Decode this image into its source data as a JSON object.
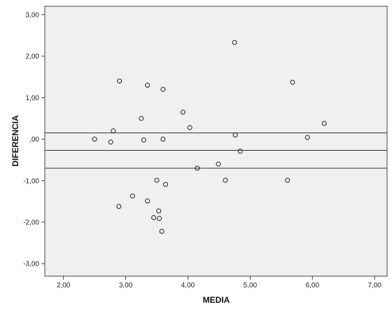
{
  "chart_data": {
    "type": "scatter",
    "title": "",
    "xlabel": "MEDIA",
    "ylabel": "DIFERENCIA",
    "xlim": [
      1.7,
      7.2
    ],
    "ylim": [
      -3.3,
      3.2
    ],
    "x_ticks": [
      2,
      3,
      4,
      5,
      6,
      7
    ],
    "x_tick_labels": [
      "2,00",
      "3,00",
      "4,00",
      "5,00",
      "6,00",
      "7,00"
    ],
    "y_ticks": [
      -3,
      -2,
      -1,
      0,
      1,
      2,
      3
    ],
    "y_tick_labels": [
      "-3,00",
      "-2,00",
      "-1,00",
      ",00",
      "1,00",
      "2,00",
      "3,00"
    ],
    "grid": false,
    "background_color": "#f0f0f0",
    "reference_lines": [
      0.15,
      -0.27,
      -0.7
    ],
    "points": [
      {
        "x": 2.5,
        "y": 0.0
      },
      {
        "x": 2.76,
        "y": -0.07
      },
      {
        "x": 2.8,
        "y": 0.2
      },
      {
        "x": 2.9,
        "y": 1.4
      },
      {
        "x": 2.89,
        "y": -1.62
      },
      {
        "x": 3.11,
        "y": -1.37
      },
      {
        "x": 3.25,
        "y": 0.5
      },
      {
        "x": 3.29,
        "y": -0.02
      },
      {
        "x": 3.35,
        "y": 1.3
      },
      {
        "x": 3.35,
        "y": -1.49
      },
      {
        "x": 3.45,
        "y": -1.89
      },
      {
        "x": 3.5,
        "y": -0.99
      },
      {
        "x": 3.53,
        "y": -1.73
      },
      {
        "x": 3.54,
        "y": -1.91
      },
      {
        "x": 3.58,
        "y": -2.22
      },
      {
        "x": 3.6,
        "y": 1.2
      },
      {
        "x": 3.6,
        "y": 0.0
      },
      {
        "x": 3.64,
        "y": -1.09
      },
      {
        "x": 3.92,
        "y": 0.65
      },
      {
        "x": 4.03,
        "y": 0.28
      },
      {
        "x": 4.15,
        "y": -0.7
      },
      {
        "x": 4.49,
        "y": -0.6
      },
      {
        "x": 4.6,
        "y": -0.99
      },
      {
        "x": 4.75,
        "y": 2.33
      },
      {
        "x": 4.76,
        "y": 0.1
      },
      {
        "x": 4.84,
        "y": -0.29
      },
      {
        "x": 5.6,
        "y": -0.99
      },
      {
        "x": 5.68,
        "y": 1.37
      },
      {
        "x": 5.92,
        "y": 0.04
      },
      {
        "x": 6.19,
        "y": 0.38
      }
    ]
  }
}
